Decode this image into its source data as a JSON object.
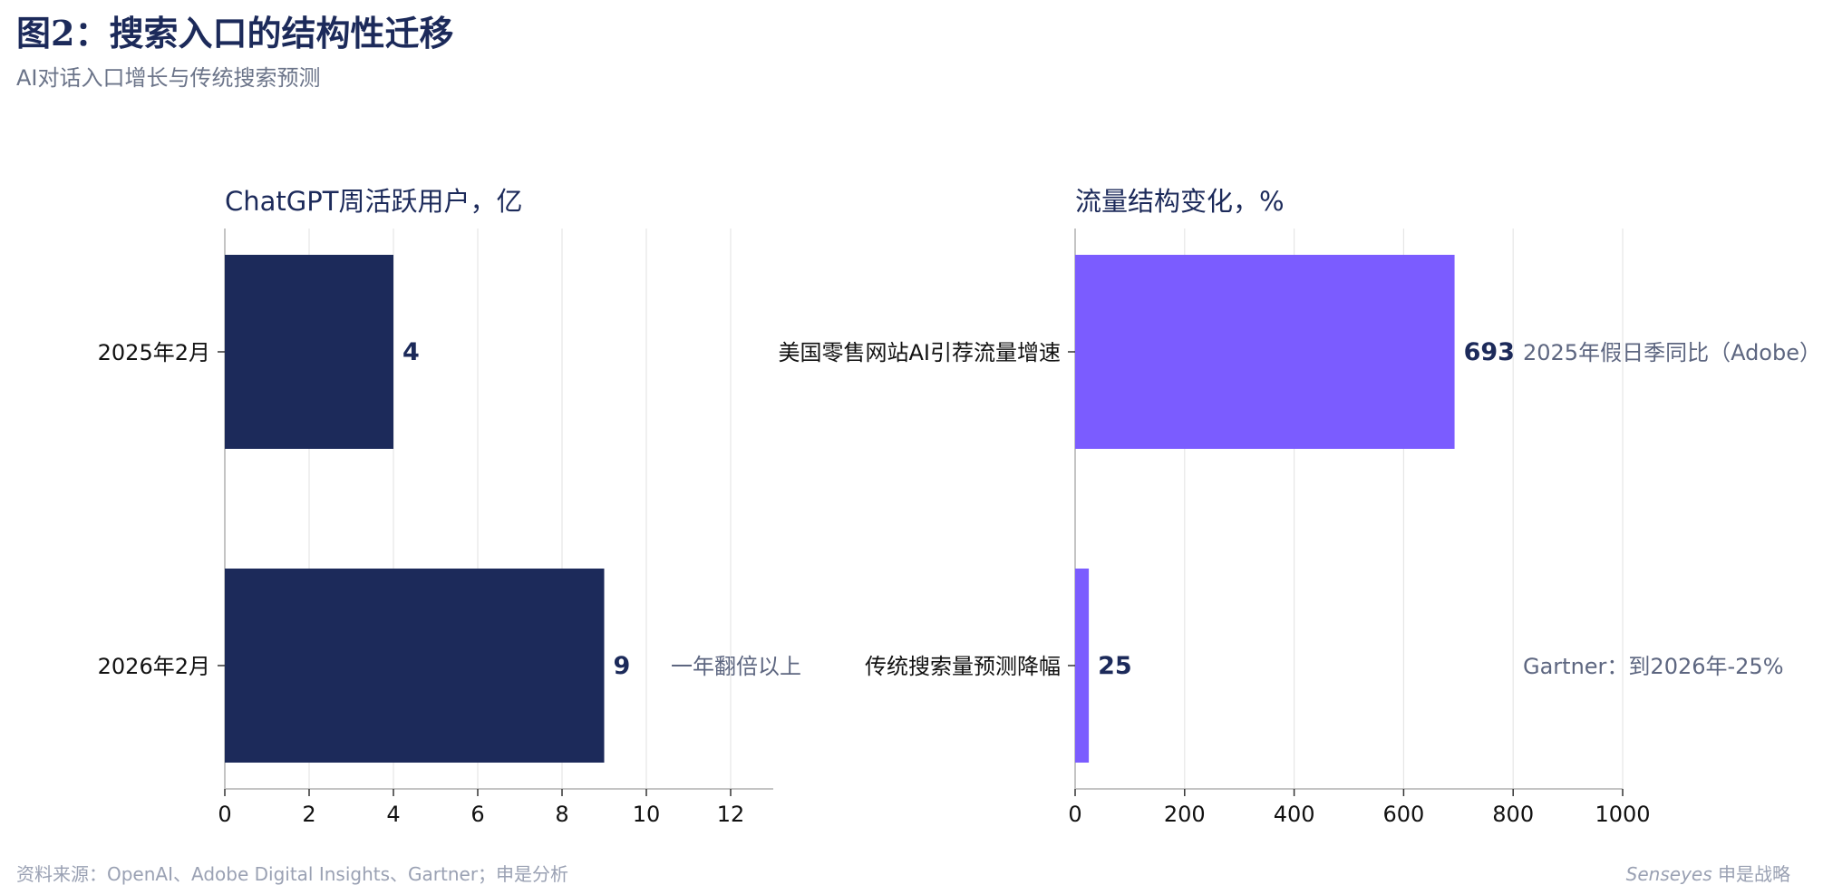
{
  "header": {
    "title": "图2：搜索入口的结构性迁移",
    "subtitle": "AI对话入口增长与传统搜索预测"
  },
  "footer": {
    "source": "资料来源：OpenAI、Adobe Digital Insights、Gartner；申是分析",
    "brand_en": "Senseyes",
    "brand_cn": "申是战略"
  },
  "colors": {
    "left_bar": "#1c2a5a",
    "right_bar": "#7b5cff",
    "value_label": "#1c2a5a",
    "annotation": "#5d6680",
    "grid": "#e6e6e6",
    "axis": "#c4c4c4"
  },
  "chart_data": [
    {
      "type": "bar",
      "orientation": "horizontal",
      "title": "ChatGPT周活跃用户，亿",
      "categories": [
        "2025年2月",
        "2026年2月"
      ],
      "values": [
        4,
        9
      ],
      "value_labels": [
        "4",
        "9"
      ],
      "annotations": [
        "",
        "一年翻倍以上"
      ],
      "xlim": [
        0,
        13
      ],
      "xticks": [
        0,
        2,
        4,
        6,
        8,
        10,
        12
      ],
      "grid": true
    },
    {
      "type": "bar",
      "orientation": "horizontal",
      "title": "流量结构变化，%",
      "categories": [
        "美国零售网站AI引荐流量增速",
        "传统搜索量预测降幅"
      ],
      "values": [
        693,
        25
      ],
      "value_labels": [
        "693",
        "25"
      ],
      "annotations": [
        "2025年假日季同比（Adobe）",
        "Gartner：到2026年-25%"
      ],
      "xlim": [
        0,
        1000
      ],
      "xticks": [
        0,
        200,
        400,
        600,
        800,
        1000
      ],
      "grid": true
    }
  ]
}
